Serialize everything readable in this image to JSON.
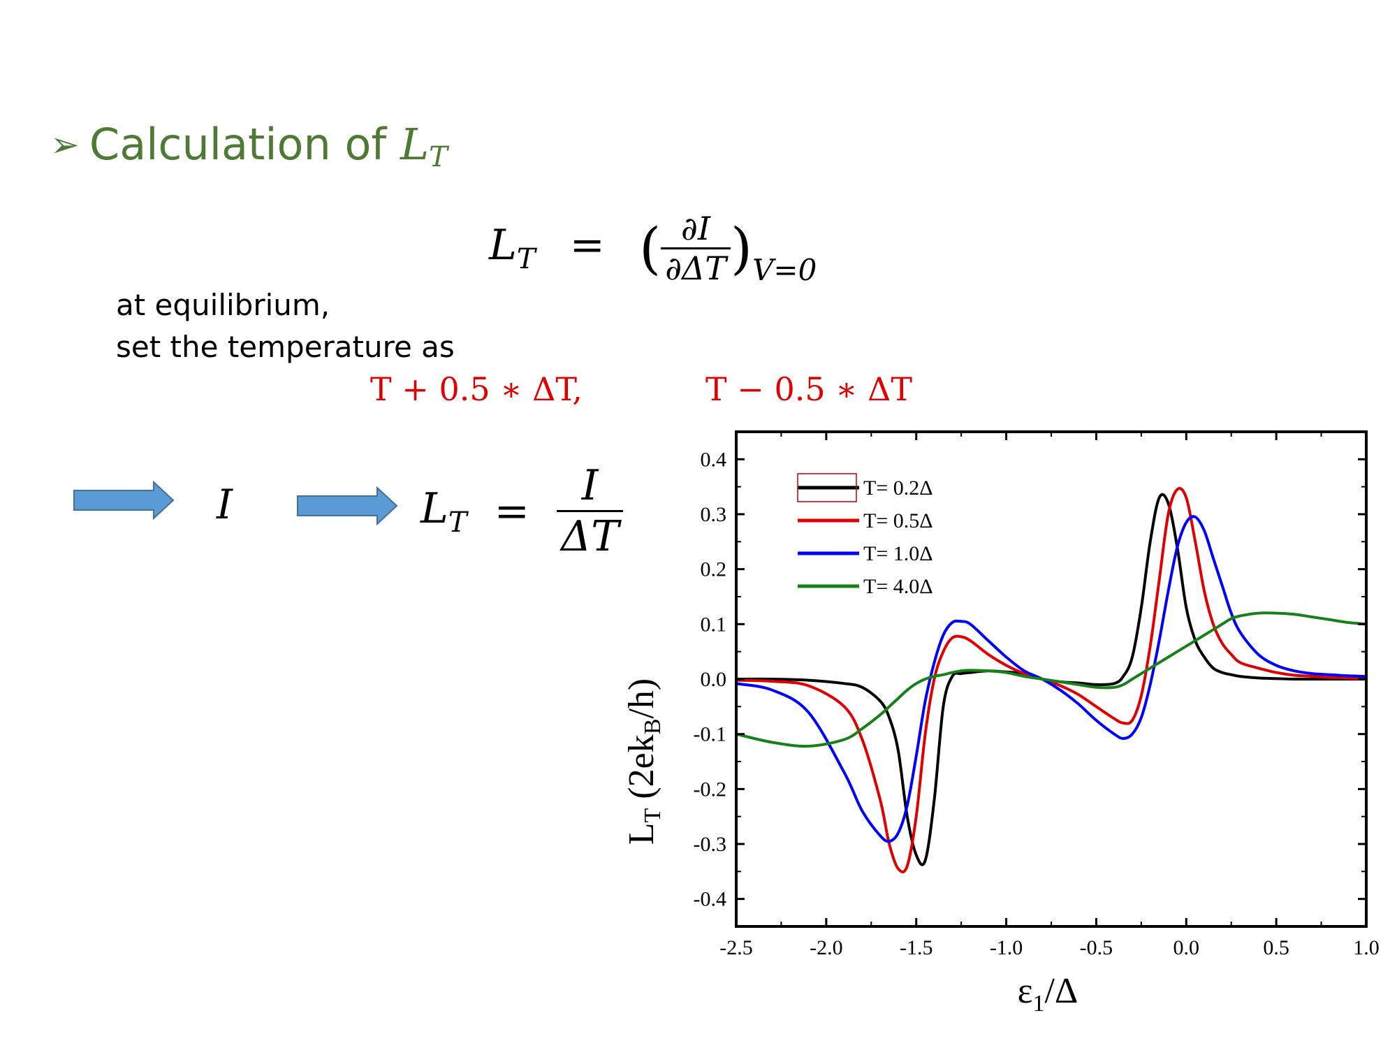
{
  "title": {
    "bullet": "➢",
    "text": "Calculation of ",
    "symbol": "L",
    "symbol_sub": "T"
  },
  "equation_main": {
    "lhs": "L",
    "lhs_sub": "T",
    "equals": "=",
    "numerator": "∂I",
    "denominator": "∂ΔT",
    "subscript": "V=0"
  },
  "body": {
    "line1": "at equilibrium,",
    "line2": "set the temperature as",
    "temp_plus": "T + 0.5 ∗ ΔT,",
    "temp_minus": "T − 0.5 ∗ ΔT"
  },
  "flow": {
    "current_symbol": "I",
    "result_lhs": "L",
    "result_lhs_sub": "T",
    "result_equals": "=",
    "result_numerator": "I",
    "result_denominator": "ΔT"
  },
  "colors": {
    "title": "#4e7a34",
    "highlight": "#e00000",
    "arrow_fill": "#5b9bd5",
    "arrow_stroke": "#41719c"
  },
  "chart_data": {
    "type": "line",
    "xlabel": "ε1/Δ",
    "ylabel": "LT (2ekB/h)",
    "xlim": [
      -2.5,
      1.0
    ],
    "ylim": [
      -0.45,
      0.45
    ],
    "x_ticks": [
      "-2.5",
      "-2.0",
      "-1.5",
      "-1.0",
      "-0.5",
      "0.0",
      "0.5",
      "1.0"
    ],
    "y_ticks": [
      "0.4",
      "0.3",
      "0.2",
      "0.1",
      "0.0",
      "-0.1",
      "-0.2",
      "-0.3",
      "-0.4"
    ],
    "legend_position": "top-left",
    "grid": false,
    "x": [
      -2.5,
      -2.3,
      -2.1,
      -1.9,
      -1.8,
      -1.7,
      -1.65,
      -1.6,
      -1.55,
      -1.5,
      -1.45,
      -1.4,
      -1.35,
      -1.3,
      -1.25,
      -1.2,
      -1.1,
      -1.0,
      -0.9,
      -0.8,
      -0.7,
      -0.6,
      -0.5,
      -0.4,
      -0.35,
      -0.3,
      -0.25,
      -0.2,
      -0.15,
      -0.1,
      -0.05,
      0.0,
      0.05,
      0.1,
      0.15,
      0.2,
      0.25,
      0.3,
      0.4,
      0.5,
      0.6,
      0.7,
      0.8,
      0.9,
      1.0
    ],
    "series": [
      {
        "name": "T= 0.2Δ",
        "color": "#000000",
        "values": [
          0.0,
          0.0,
          -0.002,
          -0.008,
          -0.015,
          -0.04,
          -0.07,
          -0.13,
          -0.25,
          -0.32,
          -0.33,
          -0.22,
          -0.05,
          0.005,
          0.01,
          0.012,
          0.015,
          0.013,
          0.01,
          0.0,
          -0.005,
          -0.007,
          -0.01,
          -0.008,
          0.005,
          0.04,
          0.13,
          0.25,
          0.33,
          0.32,
          0.24,
          0.13,
          0.07,
          0.04,
          0.02,
          0.012,
          0.008,
          0.005,
          0.002,
          0.001,
          0.0,
          0.0,
          0.0,
          0.0,
          0.0
        ]
      },
      {
        "name": "T= 0.5Δ",
        "color": "#e00000",
        "values": [
          -0.002,
          -0.004,
          -0.012,
          -0.05,
          -0.11,
          -0.22,
          -0.3,
          -0.345,
          -0.34,
          -0.25,
          -0.1,
          0.0,
          0.05,
          0.075,
          0.077,
          0.07,
          0.045,
          0.025,
          0.01,
          0.0,
          -0.012,
          -0.028,
          -0.05,
          -0.072,
          -0.08,
          -0.075,
          -0.03,
          0.06,
          0.18,
          0.3,
          0.345,
          0.33,
          0.25,
          0.16,
          0.1,
          0.065,
          0.045,
          0.03,
          0.02,
          0.012,
          0.007,
          0.005,
          0.003,
          0.002,
          0.0
        ]
      },
      {
        "name": "T= 1.0Δ",
        "color": "#0000ff",
        "values": [
          -0.008,
          -0.02,
          -0.06,
          -0.17,
          -0.24,
          -0.285,
          -0.295,
          -0.28,
          -0.23,
          -0.14,
          -0.04,
          0.03,
          0.08,
          0.103,
          0.105,
          0.1,
          0.07,
          0.04,
          0.015,
          0.0,
          -0.02,
          -0.045,
          -0.075,
          -0.1,
          -0.108,
          -0.1,
          -0.07,
          -0.01,
          0.07,
          0.16,
          0.24,
          0.285,
          0.295,
          0.27,
          0.22,
          0.17,
          0.12,
          0.085,
          0.045,
          0.025,
          0.015,
          0.01,
          0.008,
          0.006,
          0.005
        ]
      },
      {
        "name": "T= 4.0Δ",
        "color": "#188018",
        "values": [
          -0.1,
          -0.115,
          -0.122,
          -0.11,
          -0.09,
          -0.065,
          -0.05,
          -0.035,
          -0.02,
          -0.008,
          0.0,
          0.005,
          0.008,
          0.012,
          0.015,
          0.016,
          0.015,
          0.012,
          0.005,
          0.0,
          -0.005,
          -0.01,
          -0.015,
          -0.015,
          -0.01,
          0.0,
          0.01,
          0.02,
          0.03,
          0.04,
          0.05,
          0.06,
          0.07,
          0.08,
          0.09,
          0.1,
          0.11,
          0.115,
          0.12,
          0.12,
          0.118,
          0.113,
          0.108,
          0.103,
          0.1
        ]
      }
    ]
  }
}
